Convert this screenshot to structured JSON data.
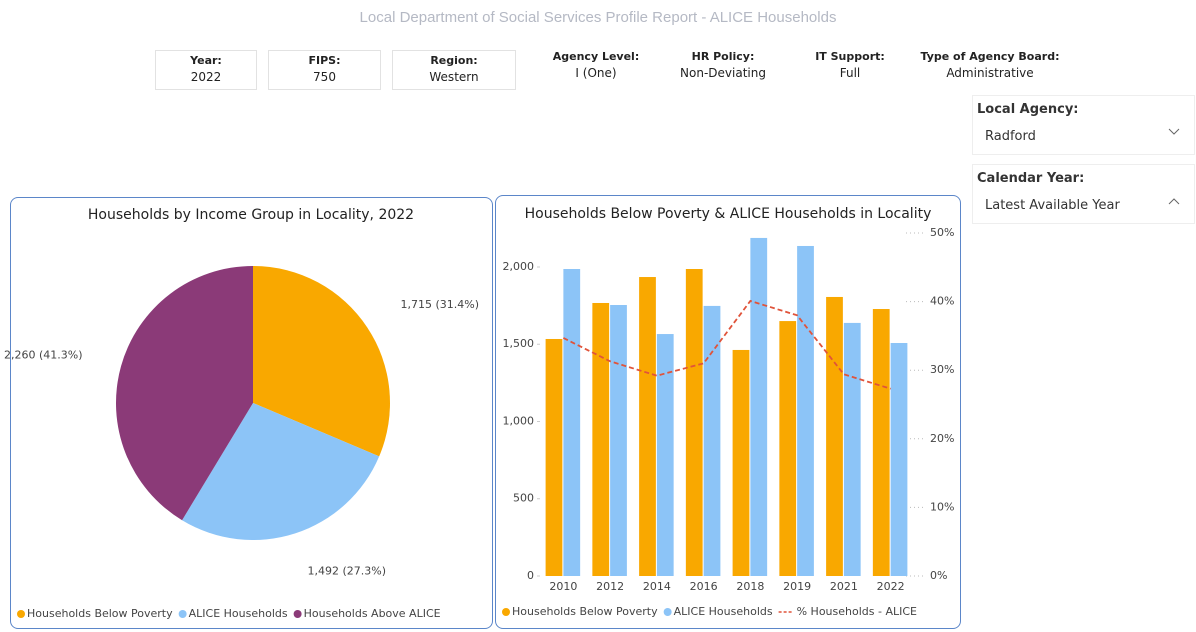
{
  "header": {
    "title": "Local Department of Social Services Profile Report - ALICE Households",
    "fields": [
      {
        "label": "Year:",
        "value": "2022"
      },
      {
        "label": "FIPS:",
        "value": "750"
      },
      {
        "label": "Region:",
        "value": "Western"
      },
      {
        "label": "Agency Level:",
        "value": "I (One)"
      },
      {
        "label": "HR Policy:",
        "value": "Non-Deviating"
      },
      {
        "label": "IT Support:",
        "value": "Full"
      },
      {
        "label": "Type of Agency Board:",
        "value": "Administrative"
      }
    ]
  },
  "slicers": [
    {
      "label": "Local Agency:",
      "value": "Radford"
    },
    {
      "label": "Calendar Year:",
      "value": "Latest Available Year"
    }
  ],
  "chart_data": [
    {
      "type": "pie",
      "title": "Households by Income Group in Locality, 2022",
      "categories": [
        "Households Below Poverty",
        "ALICE Households",
        "Households Above ALICE"
      ],
      "values": [
        1715,
        1492,
        2260
      ],
      "value_labels": [
        "1,715 (31.4%)",
        "1,492 (27.3%)",
        "2,260 (41.3%)"
      ],
      "colors": [
        "#f9a800",
        "#8cc4f7",
        "#8b3a78"
      ]
    },
    {
      "type": "bar",
      "title": "Households Below Poverty & ALICE Households in Locality",
      "categories": [
        "2010",
        "2012",
        "2014",
        "2016",
        "2018",
        "2019",
        "2021",
        "2022"
      ],
      "series": [
        {
          "name": "Households Below Poverty",
          "color": "#f9a800",
          "values": [
            1534,
            1767,
            1935,
            1987,
            1463,
            1650,
            1806,
            1728
          ]
        },
        {
          "name": "ALICE Households",
          "color": "#8cc4f7",
          "values": [
            1987,
            1754,
            1566,
            1748,
            2188,
            2136,
            1638,
            1508
          ]
        },
        {
          "name": "% Households - ALICE",
          "color": "#e0533a",
          "type": "line",
          "line_style": "dashed",
          "axis": "y2",
          "values": [
            34.7,
            31.3,
            29.2,
            31.0,
            40.1,
            38.0,
            29.4,
            27.3
          ]
        }
      ],
      "ylim": [
        0,
        2220
      ],
      "yticks": [
        0,
        500,
        {
          "value": 1000,
          "label": "1,000"
        },
        {
          "value": 1500,
          "label": "1,500"
        },
        {
          "value": 2000,
          "label": "2,000"
        }
      ],
      "y2lim": [
        0,
        50
      ],
      "y2ticks": [
        {
          "value": 0,
          "label": "0%"
        },
        {
          "value": 10,
          "label": "10%"
        },
        {
          "value": 20,
          "label": "20%"
        },
        {
          "value": 30,
          "label": "30%"
        },
        {
          "value": 40,
          "label": "40%"
        },
        {
          "value": 50,
          "label": "50%"
        }
      ],
      "grid": true
    }
  ]
}
